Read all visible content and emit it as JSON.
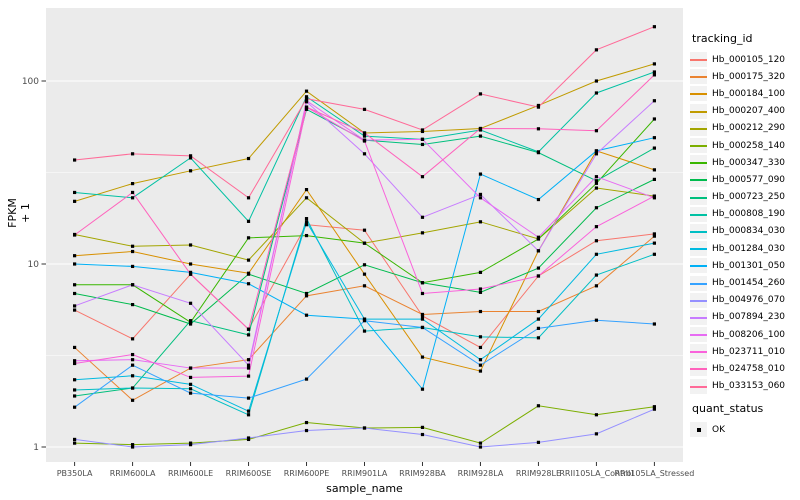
{
  "figure": {
    "background": "#FFFFFF",
    "panel_background": "#EBEBEB",
    "gridline_color": "#FFFFFF",
    "axis_text_color": "#4D4D4D",
    "tick_color": "#333333",
    "marker_color": "#000000"
  },
  "chart_data": {
    "type": "line",
    "title": "",
    "xlabel": "sample_name",
    "ylabel": "FPKM + 1",
    "y_scale": "log10",
    "y_ticks": [
      1,
      10,
      100
    ],
    "ylim": [
      0.78,
      255
    ],
    "grid": "major-and-minor",
    "legend_position": "right",
    "point_marker": "black-square",
    "x_categories": [
      "PB350LA",
      "RRIM600LA",
      "RRIM600LE",
      "RRIM600SE",
      "RRIM600PE",
      "RRIM901LA",
      "RRIM928BA",
      "RRIM928LA",
      "RRIM928LE",
      "RRII105LA_Control",
      "RRII105LA_Stressed"
    ],
    "series": [
      {
        "name": "Hb_000105_120",
        "color": "#F8766D",
        "values": [
          5.6,
          3.9,
          8.8,
          4.4,
          16.4,
          15.3,
          5.2,
          3.5,
          8.6,
          13.4,
          14.6
        ]
      },
      {
        "name": "Hb_000175_320",
        "color": "#EA8331",
        "values": [
          3.5,
          1.8,
          2.7,
          3.0,
          6.7,
          7.6,
          5.3,
          5.5,
          5.5,
          7.6,
          14.2
        ]
      },
      {
        "name": "Hb_000184_100",
        "color": "#D89000",
        "values": [
          11.1,
          11.7,
          10.0,
          8.9,
          25.5,
          8.8,
          3.1,
          2.6,
          11.8,
          41.5,
          32.7
        ]
      },
      {
        "name": "Hb_000207_400",
        "color": "#C09B00",
        "values": [
          22.0,
          27.5,
          32.3,
          37.7,
          88.0,
          52.0,
          53.0,
          55.0,
          73.5,
          100.0,
          124.0
        ]
      },
      {
        "name": "Hb_000212_290",
        "color": "#A3A500",
        "values": [
          14.5,
          12.5,
          12.7,
          10.5,
          23.0,
          13.0,
          14.8,
          17.0,
          13.7,
          26.0,
          23.5
        ]
      },
      {
        "name": "Hb_000258_140",
        "color": "#7CAE00",
        "values": [
          1.05,
          1.03,
          1.05,
          1.1,
          1.36,
          1.27,
          1.28,
          1.05,
          1.68,
          1.5,
          1.66
        ]
      },
      {
        "name": "Hb_000347_330",
        "color": "#39B600",
        "values": [
          7.7,
          7.7,
          4.8,
          13.9,
          14.3,
          13.0,
          7.9,
          9.0,
          13.7,
          27.6,
          62.0
        ]
      },
      {
        "name": "Hb_000577_090",
        "color": "#00BB4E",
        "values": [
          6.9,
          6.0,
          4.7,
          8.8,
          6.9,
          9.9,
          7.9,
          7.0,
          9.5,
          20.3,
          29.0
        ]
      },
      {
        "name": "Hb_000723_250",
        "color": "#00BF7D",
        "values": [
          1.9,
          2.1,
          4.9,
          4.1,
          70.0,
          47.5,
          45.0,
          50.0,
          40.6,
          28.5,
          43.0
        ]
      },
      {
        "name": "Hb_000808_190",
        "color": "#00C1A3",
        "values": [
          24.6,
          23.0,
          38.0,
          17.1,
          82.0,
          50.0,
          48.0,
          54.0,
          41.0,
          86.0,
          112.0
        ]
      },
      {
        "name": "Hb_000834_030",
        "color": "#00BFC4",
        "values": [
          2.05,
          2.1,
          2.08,
          1.5,
          17.7,
          4.3,
          4.5,
          4.0,
          3.95,
          8.7,
          11.3
        ]
      },
      {
        "name": "Hb_001284_030",
        "color": "#00BAE0",
        "values": [
          2.33,
          2.45,
          2.2,
          1.57,
          17.0,
          5.0,
          5.0,
          3.0,
          5.0,
          11.3,
          13.0
        ]
      },
      {
        "name": "Hb_001301_050",
        "color": "#00B0F6",
        "values": [
          10.0,
          9.7,
          9.0,
          7.8,
          5.25,
          5.0,
          2.07,
          31.0,
          22.5,
          41.5,
          49.0
        ]
      },
      {
        "name": "Hb_001454_260",
        "color": "#35A2FF",
        "values": [
          1.65,
          2.8,
          1.97,
          1.85,
          2.35,
          4.9,
          4.5,
          2.8,
          4.45,
          4.93,
          4.7
        ]
      },
      {
        "name": "Hb_004976_070",
        "color": "#9590FF",
        "values": [
          1.1,
          1.0,
          1.03,
          1.12,
          1.23,
          1.27,
          1.17,
          1.0,
          1.06,
          1.18,
          1.61
        ]
      },
      {
        "name": "Hb_007894_230",
        "color": "#C77CFF",
        "values": [
          5.9,
          7.7,
          6.1,
          2.8,
          77.0,
          40.0,
          18.0,
          24.0,
          11.8,
          40.0,
          78.0
        ]
      },
      {
        "name": "Hb_008206_100",
        "color": "#E76BF3",
        "values": [
          2.96,
          3.0,
          2.7,
          2.7,
          78.0,
          47.5,
          48.0,
          23.0,
          14.0,
          30.0,
          23.0
        ]
      },
      {
        "name": "Hb_023711_010",
        "color": "#FA62DB",
        "values": [
          2.86,
          3.2,
          2.4,
          2.44,
          72.0,
          47.0,
          6.9,
          7.3,
          8.6,
          16.0,
          23.5
        ]
      },
      {
        "name": "Hb_024758_010",
        "color": "#FF62BC",
        "values": [
          14.4,
          24.6,
          8.8,
          4.4,
          72.0,
          52.0,
          30.0,
          55.0,
          54.8,
          53.5,
          108.0
        ]
      },
      {
        "name": "Hb_033153_060",
        "color": "#FF6A98",
        "values": [
          37.0,
          40.0,
          39.0,
          23.0,
          80.0,
          70.0,
          54.0,
          85.0,
          72.0,
          148.0,
          198.0
        ]
      }
    ]
  },
  "legend": {
    "tracking_title": "tracking_id",
    "quant_title": "quant_status",
    "quant_items": [
      {
        "label": "OK"
      }
    ]
  }
}
